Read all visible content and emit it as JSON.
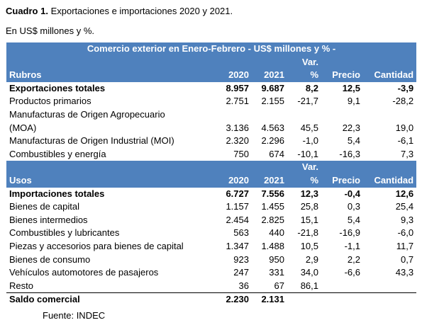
{
  "caption": {
    "label": "Cuadro 1.",
    "text": " Exportaciones e importaciones 2020 y 2021."
  },
  "units": "En US$ millones y %.",
  "table": {
    "banner": "Comercio exterior en Enero-Febrero - US$ millones y % -",
    "header1": {
      "rubro": "Rubros",
      "c2020": "2020",
      "c2021": "2021",
      "var_top": "Var.",
      "var_bot": "%",
      "precio": "Precio",
      "cantidad": "Cantidad"
    },
    "exports": [
      {
        "label": "Exportaciones totales",
        "v2020": "8.957",
        "v2021": "9.687",
        "var": "8,2",
        "precio": "12,5",
        "cantidad": "-3,9",
        "bold": true
      },
      {
        "label": "Productos primarios",
        "v2020": "2.751",
        "v2021": "2.155",
        "var": "-21,7",
        "precio": "9,1",
        "cantidad": "-28,2"
      },
      {
        "label_a": "Manufacturas de Origen Agropecuario",
        "label_b": "(MOA)",
        "v2020": "3.136",
        "v2021": "4.563",
        "var": "45,5",
        "precio": "22,3",
        "cantidad": "19,0"
      },
      {
        "label": "Manufacturas de Origen Industrial (MOI)",
        "v2020": "2.320",
        "v2021": "2.296",
        "var": "-1,0",
        "precio": "5,4",
        "cantidad": "-6,1"
      },
      {
        "label": "Combustibles y energía",
        "v2020": "750",
        "v2021": "674",
        "var": "-10,1",
        "precio": "-16,3",
        "cantidad": "7,3"
      }
    ],
    "header2": {
      "rubro": "Usos",
      "c2020": "2020",
      "c2021": "2021",
      "var_top": "Var.",
      "var_bot": "%",
      "precio": "Precio",
      "cantidad": "Cantidad"
    },
    "imports": [
      {
        "label": "Importaciones totales",
        "v2020": "6.727",
        "v2021": "7.556",
        "var": "12,3",
        "precio": "-0,4",
        "cantidad": "12,6",
        "bold": true
      },
      {
        "label": "Bienes de capital",
        "v2020": "1.157",
        "v2021": "1.455",
        "var": "25,8",
        "precio": "0,3",
        "cantidad": "25,4"
      },
      {
        "label": "Bienes intermedios",
        "v2020": "2.454",
        "v2021": "2.825",
        "var": "15,1",
        "precio": "5,4",
        "cantidad": "9,3"
      },
      {
        "label": "Combustibles y lubricantes",
        "v2020": "563",
        "v2021": "440",
        "var": "-21,8",
        "precio": "-16,9",
        "cantidad": "-6,0"
      },
      {
        "label": "Piezas y accesorios para bienes de capital",
        "v2020": "1.347",
        "v2021": "1.488",
        "var": "10,5",
        "precio": "-1,1",
        "cantidad": "11,7"
      },
      {
        "label": "Bienes de consumo",
        "v2020": "923",
        "v2021": "950",
        "var": "2,9",
        "precio": "2,2",
        "cantidad": "0,7"
      },
      {
        "label": "Vehículos automotores de pasajeros",
        "v2020": "247",
        "v2021": "331",
        "var": "34,0",
        "precio": "-6,6",
        "cantidad": "43,3"
      },
      {
        "label": "Resto",
        "v2020": "36",
        "v2021": "67",
        "var": "86,1",
        "precio": "",
        "cantidad": ""
      }
    ],
    "balance": {
      "label": "Saldo comercial",
      "v2020": "2.230",
      "v2021": "2.131"
    }
  },
  "source": "Fuente: INDEC",
  "colors": {
    "header_bg": "#4f81bd",
    "header_text": "#ffffff"
  }
}
